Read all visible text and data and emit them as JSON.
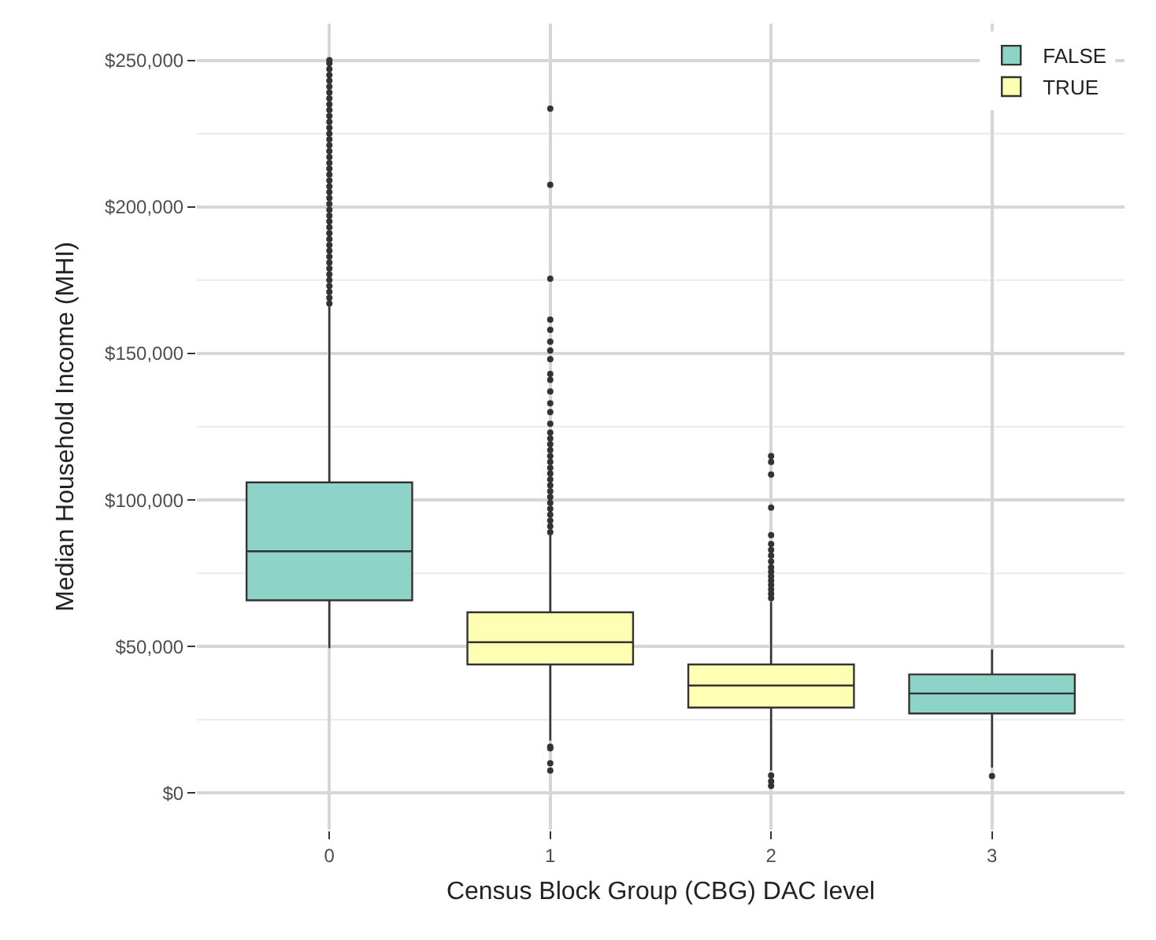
{
  "chart_data": {
    "type": "box",
    "xlabel": "Census Block Group (CBG) DAC level",
    "ylabel": "Median Household Income (MHI)",
    "categories": [
      "0",
      "1",
      "2",
      "3"
    ],
    "series": [
      {
        "name": "FALSE",
        "color": "#8dd3c7",
        "boxes": [
          {
            "low": 49500,
            "q1": 65800,
            "median": 82500,
            "q3": 106000,
            "high": 166000,
            "outliers": [
              167000,
              169000,
              171000,
              173000,
              175000,
              177000,
              179000,
              181000,
              183000,
              185000,
              187000,
              189000,
              191000,
              193000,
              195000,
              197000,
              199000,
              201000,
              203000,
              205000,
              207000,
              209000,
              211000,
              213000,
              215000,
              217000,
              219000,
              221000,
              223000,
              225000,
              227000,
              229000,
              231000,
              233000,
              235000,
              237000,
              239000,
              241000,
              243000,
              245000,
              247000,
              249000,
              250000
            ]
          },
          null,
          null,
          {
            "low": 8700,
            "q1": 27200,
            "median": 34000,
            "q3": 40500,
            "high": 49000,
            "outliers": [
              5800
            ]
          }
        ]
      },
      {
        "name": "TRUE",
        "color": "#ffffb3",
        "boxes": [
          null,
          {
            "low": 17900,
            "q1": 43900,
            "median": 51500,
            "q3": 61700,
            "high": 88000,
            "outliers": [
              7700,
              10200,
              15300,
              15800,
              89000,
              91000,
              93000,
              95000,
              97000,
              99000,
              101000,
              103000,
              105000,
              107000,
              109000,
              111000,
              113000,
              115000,
              117000,
              119000,
              121000,
              123000,
              126000,
              130000,
              133000,
              137000,
              141000,
              143000,
              148000,
              151000,
              154000,
              158000,
              161500,
              175500,
              207500,
              233500
            ]
          },
          {
            "low": 7700,
            "q1": 29200,
            "median": 36700,
            "q3": 43900,
            "high": 65300,
            "outliers": [
              2500,
              4000,
              6000,
              66500,
              68000,
              69500,
              71000,
              72500,
              74000,
              75500,
              77000,
              79000,
              81000,
              83000,
              85000,
              88000,
              97400,
              108700,
              113000,
              115000
            ]
          },
          null
        ]
      }
    ],
    "ylim": [
      -12500,
      262500
    ],
    "yticks": [
      {
        "value": 0,
        "label": "$0"
      },
      {
        "value": 50000,
        "label": "$50,000"
      },
      {
        "value": 100000,
        "label": "$100,000"
      },
      {
        "value": 150000,
        "label": "$150,000"
      },
      {
        "value": 200000,
        "label": "$200,000"
      },
      {
        "value": 250000,
        "label": "$250,000"
      }
    ],
    "grid": true,
    "legend": "top right"
  }
}
